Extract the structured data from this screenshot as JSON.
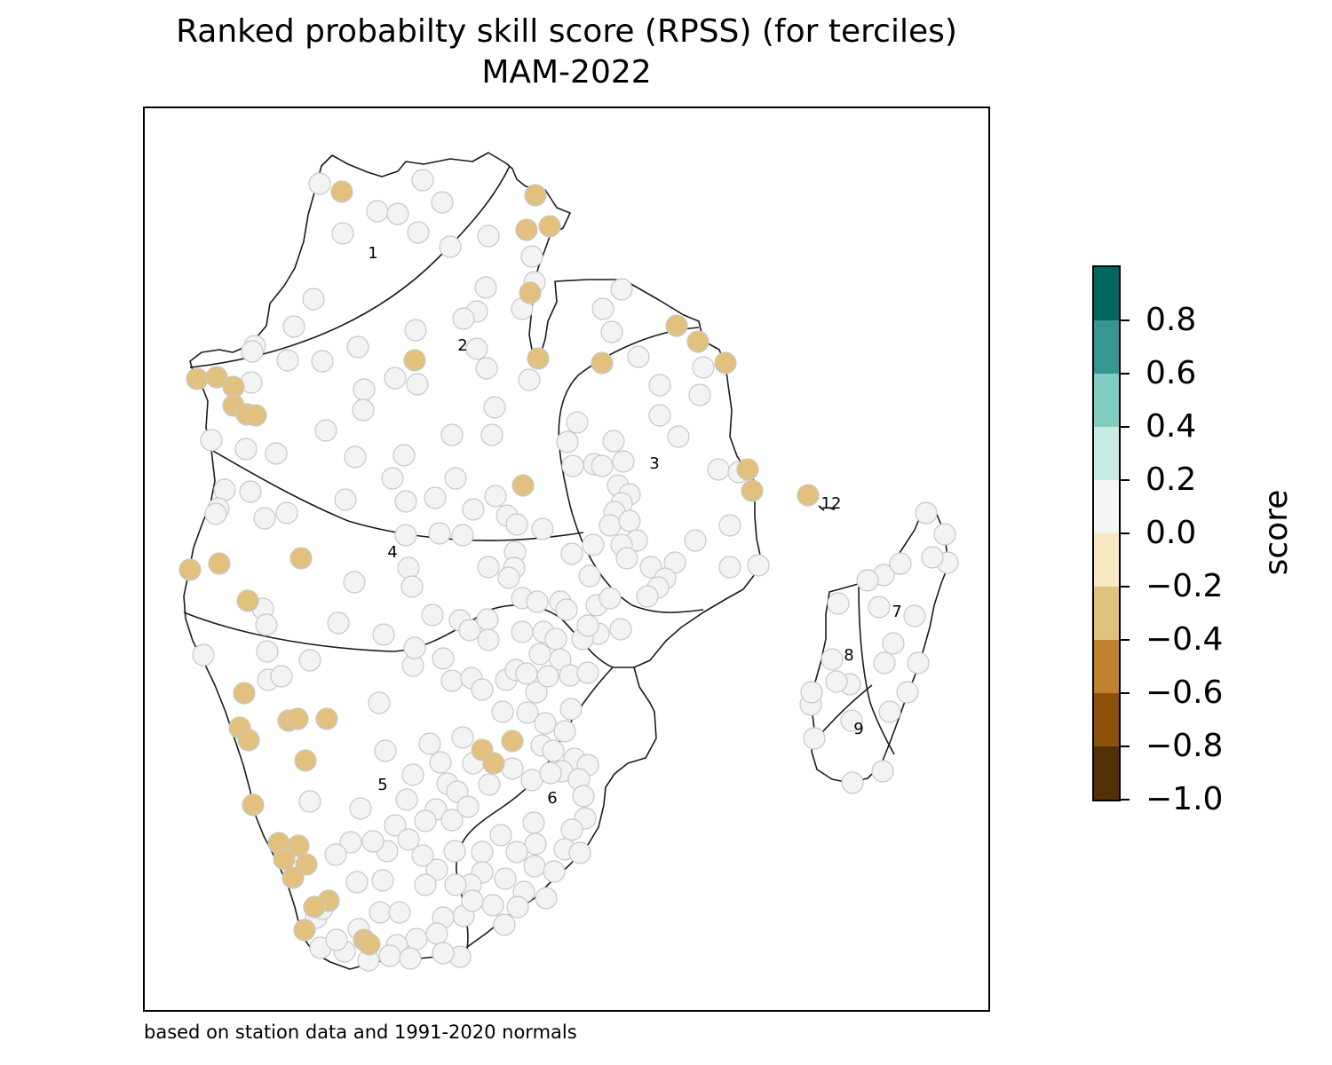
{
  "map": {
    "title_line1": "Ranked probabilty skill score (RPSS) (for terciles)",
    "title_line2": "MAM-2022",
    "footnote": "based on station data and 1991-2020 normals",
    "region_labels": [
      "1",
      "2",
      "3",
      "4",
      "5",
      "6",
      "7",
      "8",
      "9",
      "12"
    ],
    "station_colors": {
      "near_zero": "#f2f3f2",
      "negative_0_2_to_0_4": "#e2c17e",
      "outline": "#c8c8c8"
    },
    "boundary_color": "#1a1a1a"
  },
  "colorbar": {
    "label": "score",
    "ticks": [
      "0.8",
      "0.6",
      "0.4",
      "0.2",
      "0.0",
      "−0.2",
      "−0.4",
      "−0.6",
      "−0.8",
      "−1.0"
    ],
    "bins": [
      {
        "min": -1.0,
        "max": -0.8,
        "color": "#543005"
      },
      {
        "min": -0.8,
        "max": -0.6,
        "color": "#8c510a"
      },
      {
        "min": -0.6,
        "max": -0.4,
        "color": "#bf812d"
      },
      {
        "min": -0.4,
        "max": -0.2,
        "color": "#dfc27d"
      },
      {
        "min": -0.2,
        "max": 0.0,
        "color": "#f6e8c3"
      },
      {
        "min": 0.0,
        "max": 0.2,
        "color": "#f5f5f5"
      },
      {
        "min": 0.2,
        "max": 0.4,
        "color": "#c7eae5"
      },
      {
        "min": 0.4,
        "max": 0.6,
        "color": "#80cdc1"
      },
      {
        "min": 0.6,
        "max": 0.8,
        "color": "#35978f"
      },
      {
        "min": 0.8,
        "max": 1.0,
        "color": "#01665e"
      }
    ]
  }
}
